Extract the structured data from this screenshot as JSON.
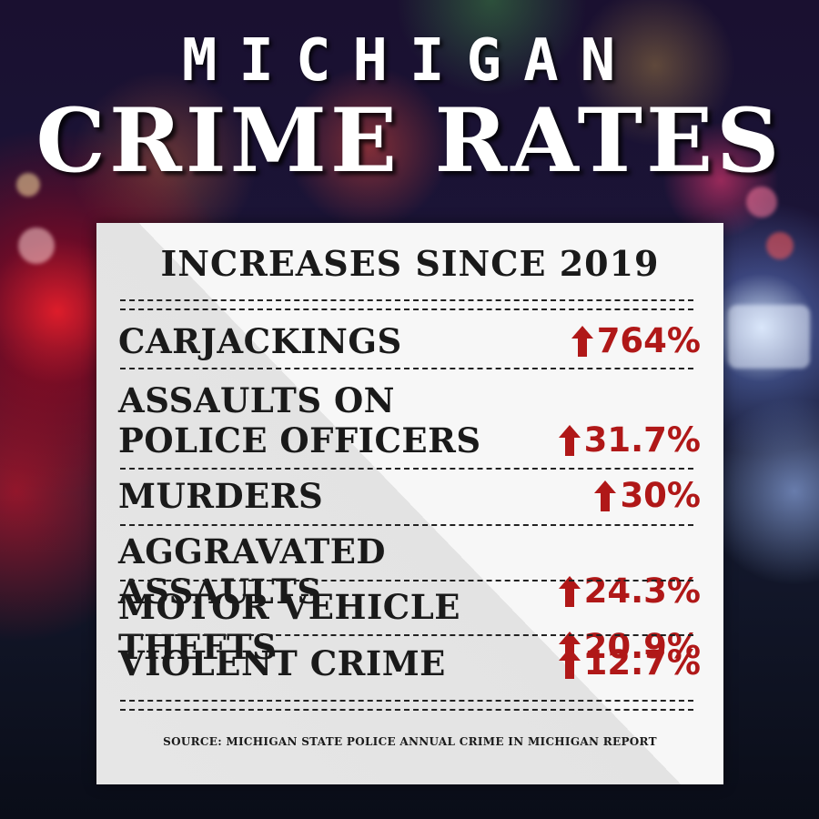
{
  "header": {
    "top_title": "MICHIGAN",
    "main_title": "CRIME RATES"
  },
  "card": {
    "title": "INCREASES SINCE 2019",
    "rows": [
      {
        "label": "CARJACKINGS",
        "value": "764%"
      },
      {
        "label": "ASSAULTS ON\nPOLICE OFFICERS",
        "value": "31.7%"
      },
      {
        "label": "MURDERS",
        "value": "30%"
      },
      {
        "label": "AGGRAVATED ASSAULTS",
        "value": "24.3%"
      },
      {
        "label": "MOTOR VEHICLE THEFTS",
        "value": "20.9%"
      },
      {
        "label": "VIOLENT CRIME",
        "value": "12.7%"
      }
    ],
    "source": "SOURCE: MICHIGAN STATE POLICE ANNUAL CRIME IN MICHIGAN REPORT"
  },
  "colors": {
    "accent_red": "#b01818",
    "card_light": "#f7f7f7",
    "card_shade": "#e3e3e3",
    "title_white": "#ffffff"
  },
  "icons": {
    "increase": "up-arrow-icon"
  }
}
